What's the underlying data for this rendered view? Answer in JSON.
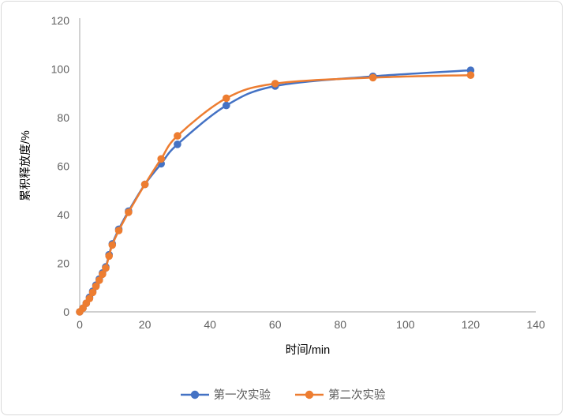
{
  "chart_data": {
    "type": "line",
    "title": "",
    "xlabel": "时间/min",
    "ylabel": "累积释放度/%",
    "xlim": [
      0,
      140
    ],
    "xtick_step": 20,
    "ylim": [
      0,
      120
    ],
    "ytick_step": 20,
    "grid": false,
    "legend_position": "bottom",
    "marker": "circle",
    "line_style": "smooth",
    "axis_color": "#bfbfbf",
    "text_color": "#5f5f5f",
    "x": [
      0,
      1,
      2,
      3,
      4,
      5,
      6,
      7,
      8,
      9,
      10,
      12,
      15,
      20,
      25,
      30,
      45,
      60,
      90,
      120
    ],
    "series": [
      {
        "name": "第一次实验",
        "color": "#4472c4",
        "values": [
          0,
          1.5,
          3.5,
          6,
          8.5,
          11,
          13.5,
          16,
          18.5,
          23.5,
          28,
          34,
          41.5,
          52.5,
          61,
          69,
          85,
          93,
          97,
          99.5
        ]
      },
      {
        "name": "第二次实验",
        "color": "#ed7d31",
        "values": [
          0,
          1.5,
          3.5,
          5.5,
          8,
          10.5,
          13,
          15.5,
          18,
          23,
          27.5,
          33.5,
          41,
          52.5,
          63,
          72.5,
          88,
          94,
          96.5,
          97.5
        ]
      }
    ],
    "xtick_labels": [
      "0",
      "20",
      "40",
      "60",
      "80",
      "100",
      "120",
      "140"
    ],
    "ytick_labels": [
      "0",
      "20",
      "40",
      "60",
      "80",
      "100",
      "120"
    ]
  }
}
